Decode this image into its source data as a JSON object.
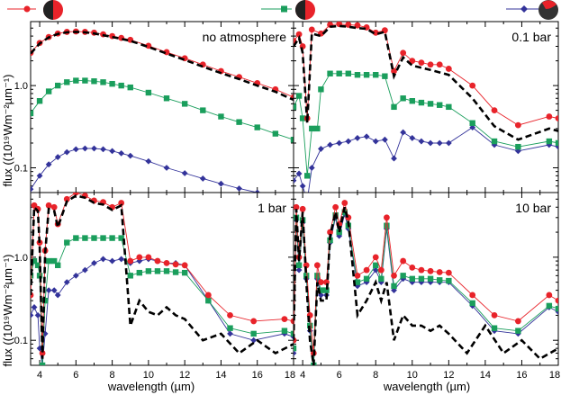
{
  "chart_data": [
    {
      "type": "line",
      "panel_label": "no atmosphere",
      "xlim": [
        3.5,
        18
      ],
      "ylim": [
        0.05,
        6
      ],
      "yscale": "log",
      "xlabel": "",
      "ylabel": "flux ((10¹⁹Wm⁻²µm⁻¹)",
      "series": [
        {
          "legend": "red-marker",
          "x": [
            3.5,
            4.0,
            4.5,
            5.0,
            5.5,
            6.0,
            6.5,
            7.0,
            7.5,
            8.0,
            8.5,
            9.0,
            10.0,
            11.0,
            12.0,
            13.0,
            14.0,
            15.0,
            16.0,
            17.0,
            18.0
          ],
          "y": [
            2.5,
            3.3,
            3.9,
            4.3,
            4.5,
            4.55,
            4.5,
            4.4,
            4.2,
            4.0,
            3.8,
            3.6,
            3.05,
            2.55,
            2.15,
            1.8,
            1.5,
            1.27,
            1.07,
            0.9,
            0.72
          ]
        },
        {
          "legend": "green-marker",
          "x": [
            3.5,
            4.0,
            4.5,
            5.0,
            5.5,
            6.0,
            6.5,
            7.0,
            7.5,
            8.0,
            8.5,
            9.0,
            10.0,
            11.0,
            12.0,
            13.0,
            14.0,
            15.0,
            16.0,
            17.0,
            18.0
          ],
          "y": [
            0.46,
            0.65,
            0.85,
            1.0,
            1.1,
            1.15,
            1.15,
            1.13,
            1.1,
            1.05,
            1.0,
            0.95,
            0.82,
            0.7,
            0.6,
            0.5,
            0.42,
            0.36,
            0.31,
            0.26,
            0.22
          ]
        },
        {
          "legend": "blue-marker",
          "x": [
            3.5,
            4.0,
            4.5,
            5.0,
            5.5,
            6.0,
            6.5,
            7.0,
            7.5,
            8.0,
            8.5,
            9.0,
            10.0,
            11.0,
            12.0,
            13.0,
            14.0,
            15.0,
            16.0
          ],
          "y": [
            0.055,
            0.08,
            0.11,
            0.135,
            0.155,
            0.168,
            0.172,
            0.172,
            0.168,
            0.16,
            0.15,
            0.14,
            0.12,
            0.1,
            0.086,
            0.074,
            0.064,
            0.056,
            0.05
          ]
        },
        {
          "legend": "dashed",
          "x": [
            3.5,
            4.0,
            4.5,
            5.0,
            5.5,
            6.0,
            6.5,
            7.0,
            7.5,
            8.0,
            8.5,
            9.0,
            10.0,
            11.0,
            12.0,
            13.0,
            14.0,
            15.0,
            16.0,
            17.0,
            18.0
          ],
          "y": [
            2.45,
            3.25,
            3.85,
            4.25,
            4.45,
            4.5,
            4.45,
            4.3,
            4.1,
            3.9,
            3.7,
            3.5,
            2.95,
            2.45,
            2.05,
            1.7,
            1.42,
            1.2,
            1.0,
            0.84,
            0.67
          ]
        }
      ]
    },
    {
      "type": "line",
      "panel_label": "0.1 bar",
      "xlim": [
        3.5,
        18
      ],
      "ylim": [
        0.05,
        6
      ],
      "yscale": "log",
      "series": [
        {
          "legend": "red-marker",
          "x": [
            3.5,
            3.8,
            4.0,
            4.25,
            4.5,
            5.0,
            5.5,
            6.0,
            6.5,
            7.0,
            7.5,
            8.0,
            8.5,
            9.0,
            9.5,
            10.0,
            10.5,
            11.0,
            11.5,
            12.0,
            13.3,
            14.5,
            15.8,
            17.5,
            18.0
          ],
          "y": [
            3.5,
            4.2,
            3.0,
            0.4,
            4.8,
            4.3,
            5.5,
            5.6,
            5.5,
            5.4,
            5.1,
            4.4,
            4.7,
            1.5,
            2.5,
            2.0,
            1.9,
            1.8,
            1.8,
            1.6,
            1.0,
            0.5,
            0.33,
            0.42,
            0.4
          ]
        },
        {
          "legend": "green-marker",
          "x": [
            3.5,
            3.8,
            4.0,
            4.25,
            4.5,
            4.8,
            5.0,
            5.5,
            6.0,
            6.5,
            7.0,
            7.5,
            8.0,
            8.5,
            9.0,
            9.5,
            10.0,
            10.5,
            11.0,
            11.5,
            12.0,
            13.3,
            14.5,
            15.8,
            17.5,
            18.0
          ],
          "y": [
            0.55,
            0.75,
            0.4,
            0.08,
            0.3,
            0.3,
            0.9,
            1.4,
            1.4,
            1.4,
            1.35,
            1.35,
            1.35,
            1.3,
            0.55,
            0.7,
            0.65,
            0.62,
            0.6,
            0.58,
            0.55,
            0.35,
            0.21,
            0.18,
            0.21,
            0.2
          ]
        },
        {
          "legend": "blue-marker",
          "x": [
            3.5,
            3.8,
            4.0,
            4.25,
            4.5,
            5.0,
            5.5,
            6.0,
            6.5,
            7.0,
            7.5,
            8.0,
            8.5,
            9.0,
            9.5,
            10.0,
            10.5,
            11.0,
            11.5,
            12.0,
            13.3,
            14.5,
            15.8,
            17.5,
            18.0
          ],
          "y": [
            0.07,
            0.085,
            0.06,
            0.04,
            0.1,
            0.17,
            0.19,
            0.2,
            0.21,
            0.23,
            0.24,
            0.21,
            0.22,
            0.13,
            0.27,
            0.23,
            0.21,
            0.2,
            0.2,
            0.2,
            0.31,
            0.19,
            0.16,
            0.19,
            0.18
          ]
        },
        {
          "legend": "dashed",
          "x": [
            3.5,
            3.8,
            4.0,
            4.25,
            4.5,
            5.0,
            5.5,
            6.0,
            6.5,
            7.0,
            7.5,
            8.0,
            8.5,
            9.0,
            9.5,
            10.0,
            11.0,
            12.0,
            13.3,
            14.5,
            15.8,
            17.5,
            18.0
          ],
          "y": [
            3.0,
            3.8,
            2.5,
            0.35,
            4.3,
            4.0,
            5.2,
            5.3,
            5.2,
            5.0,
            4.9,
            4.2,
            4.5,
            1.3,
            2.2,
            1.75,
            1.55,
            1.35,
            0.7,
            0.32,
            0.22,
            0.3,
            0.28
          ]
        }
      ]
    },
    {
      "type": "line",
      "panel_label": "1 bar",
      "xlim": [
        3.5,
        18
      ],
      "ylim": [
        0.05,
        6
      ],
      "yscale": "log",
      "xlabel": "",
      "ylabel": "flux ((10¹⁹Wm⁻²µm⁻¹)",
      "series": [
        {
          "legend": "red-marker",
          "x": [
            3.5,
            3.7,
            3.9,
            4.0,
            4.15,
            4.3,
            4.5,
            4.8,
            5.0,
            5.5,
            6.0,
            6.5,
            7.0,
            7.5,
            8.0,
            8.5,
            9.0,
            9.5,
            10.0,
            10.5,
            11.0,
            11.5,
            12.0,
            13.3,
            14.5,
            15.8,
            17.5,
            18.0
          ],
          "y": [
            0.35,
            4.2,
            3.8,
            1.5,
            0.07,
            1.2,
            4.2,
            4.0,
            2.5,
            5.0,
            6.0,
            5.5,
            4.8,
            4.6,
            4.0,
            4.5,
            0.9,
            1.0,
            1.0,
            0.9,
            0.85,
            0.82,
            0.8,
            0.35,
            0.2,
            0.17,
            0.18,
            0.17
          ]
        },
        {
          "legend": "green-marker",
          "x": [
            3.5,
            3.7,
            3.9,
            4.0,
            4.15,
            4.3,
            4.5,
            4.8,
            5.0,
            5.5,
            6.0,
            6.5,
            7.0,
            7.5,
            8.0,
            8.5,
            9.0,
            9.5,
            10.0,
            10.5,
            11.0,
            11.5,
            12.0,
            13.3,
            14.5,
            15.8,
            17.5,
            18.0
          ],
          "y": [
            0.6,
            0.9,
            0.8,
            0.6,
            0.05,
            0.3,
            0.9,
            0.9,
            0.8,
            1.5,
            1.7,
            1.7,
            1.7,
            1.7,
            1.7,
            1.7,
            0.6,
            0.65,
            0.68,
            0.68,
            0.68,
            0.66,
            0.65,
            0.3,
            0.14,
            0.12,
            0.13,
            0.12
          ]
        },
        {
          "legend": "blue-marker",
          "x": [
            3.5,
            3.7,
            3.9,
            4.0,
            4.15,
            4.3,
            4.5,
            4.8,
            5.0,
            5.5,
            6.0,
            6.5,
            7.0,
            7.5,
            8.0,
            8.5,
            9.0,
            9.5,
            10.0,
            10.5,
            11.0,
            11.5,
            12.0,
            13.3,
            14.5,
            15.8,
            17.5,
            18.0
          ],
          "y": [
            0.2,
            0.25,
            0.2,
            0.08,
            0.05,
            0.12,
            0.4,
            0.4,
            0.35,
            0.5,
            0.6,
            0.7,
            0.85,
            0.95,
            0.9,
            0.95,
            0.85,
            0.9,
            0.95,
            0.9,
            0.85,
            0.85,
            0.8,
            0.3,
            0.12,
            0.1,
            0.12,
            0.11
          ]
        },
        {
          "legend": "dashed",
          "x": [
            3.5,
            3.7,
            3.9,
            4.0,
            4.15,
            4.3,
            4.5,
            4.8,
            5.0,
            5.5,
            6.0,
            6.5,
            7.0,
            7.5,
            8.0,
            8.5,
            9.0,
            9.5,
            10.0,
            10.5,
            11.0,
            11.5,
            12.0,
            13.0,
            14.0,
            15.0,
            16.0,
            17.0,
            18.0
          ],
          "y": [
            0.35,
            4.0,
            3.6,
            1.3,
            0.06,
            1.1,
            3.8,
            3.6,
            2.3,
            4.7,
            5.5,
            5.2,
            4.5,
            4.3,
            3.7,
            4.2,
            0.15,
            0.3,
            0.22,
            0.2,
            0.25,
            0.2,
            0.18,
            0.1,
            0.12,
            0.07,
            0.1,
            0.07,
            0.09
          ]
        }
      ]
    },
    {
      "type": "line",
      "panel_label": "10 bar",
      "xlim": [
        3.5,
        18
      ],
      "ylim": [
        0.05,
        6
      ],
      "yscale": "log",
      "series": [
        {
          "legend": "red-marker",
          "x": [
            3.5,
            3.65,
            3.8,
            4.0,
            4.2,
            4.4,
            4.6,
            4.8,
            5.0,
            5.3,
            5.5,
            5.8,
            6.0,
            6.3,
            6.5,
            7.0,
            7.5,
            8.0,
            8.3,
            8.6,
            9.0,
            9.5,
            10.0,
            10.5,
            11.0,
            11.5,
            12.0,
            13.3,
            14.5,
            15.8,
            17.5,
            18.0
          ],
          "y": [
            0.1,
            4.0,
            1.0,
            3.8,
            0.8,
            0.2,
            0.07,
            0.8,
            0.5,
            0.5,
            2.0,
            4.0,
            2.5,
            4.5,
            3.0,
            0.6,
            0.7,
            1.0,
            0.7,
            3.0,
            0.6,
            0.9,
            0.75,
            0.7,
            0.68,
            0.66,
            0.65,
            0.35,
            0.2,
            0.17,
            0.35,
            0.3
          ]
        },
        {
          "legend": "green-marker",
          "x": [
            3.5,
            3.65,
            3.8,
            4.0,
            4.2,
            4.4,
            4.6,
            4.8,
            5.0,
            5.3,
            5.5,
            5.8,
            6.0,
            6.3,
            6.5,
            7.0,
            7.5,
            8.0,
            8.3,
            8.6,
            9.0,
            9.5,
            10.0,
            10.5,
            11.0,
            11.5,
            12.0,
            13.3,
            14.5,
            15.8,
            17.5,
            18.0
          ],
          "y": [
            0.08,
            3.0,
            0.8,
            2.8,
            0.6,
            0.15,
            0.05,
            0.6,
            0.4,
            0.4,
            1.6,
            3.2,
            2.0,
            3.5,
            2.4,
            0.5,
            0.55,
            0.8,
            0.55,
            2.4,
            0.45,
            0.6,
            0.55,
            0.55,
            0.55,
            0.53,
            0.52,
            0.28,
            0.14,
            0.13,
            0.26,
            0.24
          ]
        },
        {
          "legend": "blue-marker",
          "x": [
            3.5,
            3.65,
            3.8,
            4.0,
            4.2,
            4.4,
            4.6,
            4.8,
            5.0,
            5.3,
            5.5,
            5.8,
            6.0,
            6.3,
            6.5,
            7.0,
            7.5,
            8.0,
            8.3,
            8.6,
            9.0,
            9.5,
            10.0,
            10.5,
            11.0,
            11.5,
            12.0,
            13.3,
            14.5,
            15.8,
            17.5,
            18.0
          ],
          "y": [
            0.07,
            2.8,
            0.7,
            2.6,
            0.55,
            0.13,
            0.05,
            0.55,
            0.35,
            0.35,
            1.5,
            3.0,
            1.8,
            3.3,
            2.2,
            0.45,
            0.5,
            0.7,
            0.5,
            2.2,
            0.4,
            0.55,
            0.5,
            0.5,
            0.5,
            0.5,
            0.5,
            0.26,
            0.13,
            0.12,
            0.25,
            0.22
          ]
        },
        {
          "legend": "dashed",
          "x": [
            3.5,
            3.65,
            3.8,
            4.0,
            4.2,
            4.4,
            4.6,
            4.8,
            5.0,
            5.3,
            5.5,
            5.8,
            6.0,
            6.3,
            6.5,
            7.0,
            7.5,
            8.0,
            8.3,
            8.6,
            9.0,
            9.5,
            10.0,
            10.5,
            11.0,
            11.5,
            12.0,
            13.0,
            14.0,
            15.0,
            16.0,
            17.0,
            18.0
          ],
          "y": [
            0.1,
            3.8,
            0.9,
            3.5,
            0.5,
            0.1,
            0.05,
            0.5,
            0.3,
            0.3,
            1.8,
            3.5,
            2.0,
            4.0,
            2.7,
            0.2,
            0.3,
            0.5,
            0.3,
            0.5,
            0.1,
            0.2,
            0.15,
            0.15,
            0.13,
            0.15,
            0.12,
            0.07,
            0.15,
            0.07,
            0.1,
            0.06,
            0.08
          ]
        }
      ]
    }
  ],
  "figure": {
    "xlabel": "wavelength (µm)",
    "left_xticks": [
      "4",
      "6",
      "8",
      "10",
      "12",
      "14",
      "16"
    ],
    "right_xticks": [
      "18",
      "4",
      "6",
      "8",
      "10",
      "12",
      "14",
      "16",
      "18"
    ],
    "yticks": [
      "1.0",
      "0.1"
    ],
    "legend": [
      {
        "key": "red-marker",
        "icon": "planet-half-dark-red-icon"
      },
      {
        "key": "green-marker",
        "icon": "planet-half-dark-red-icon"
      },
      {
        "key": "blue-marker",
        "icon": "planet-mostly-dark-red-icon"
      }
    ],
    "colors": {
      "red-marker": "#e8232a",
      "green-marker": "#1a9e5c",
      "blue-marker": "#33339a",
      "dashed": "#000000"
    }
  }
}
